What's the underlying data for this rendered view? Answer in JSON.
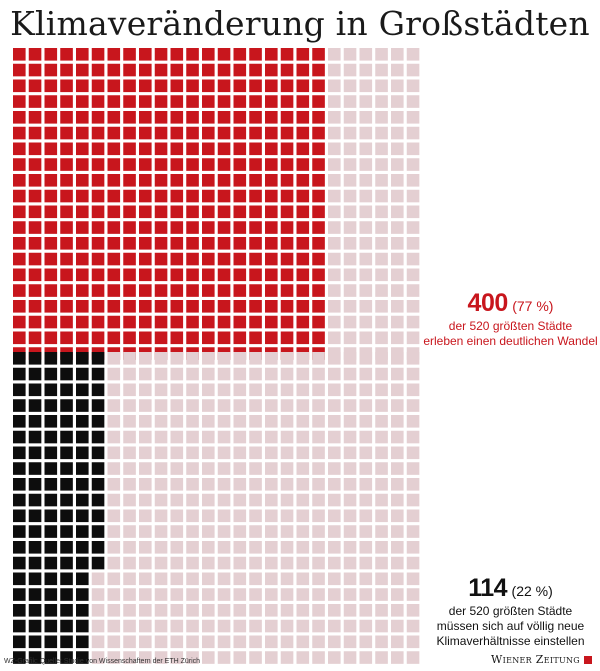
{
  "title": "Klimaveränderung in Großstädten",
  "chart_data": [
    {
      "type": "waffle",
      "total": 520,
      "highlighted": 400,
      "columns": 26,
      "rows": 20,
      "fill_order": "column-wise, left to right",
      "highlight_color": "#c8161d",
      "rest_color": "#e4cfd2",
      "label": {
        "value": "400",
        "percent": "(77 %)",
        "lines": [
          "der 520 größten Städte",
          "erleben einen deutlichen Wandel"
        ]
      }
    },
    {
      "type": "waffle",
      "total": 520,
      "highlighted": 114,
      "columns": 26,
      "rows": 20,
      "fill_order": "column-wise, left to right",
      "highlight_color": "#0d0d0d",
      "rest_color": "#e4cfd2",
      "label": {
        "value": "114",
        "percent": "(22 %)",
        "lines": [
          "der 520 größten Städte",
          "müssen sich auf völlig neue",
          "Klimaverhältnisse einstellen"
        ]
      }
    }
  ],
  "footer": {
    "source": "WZ-Grafik; Quelle: Studie von Wissenschaftern der ETH Zürich",
    "brand": "Wiener Zeitung"
  }
}
